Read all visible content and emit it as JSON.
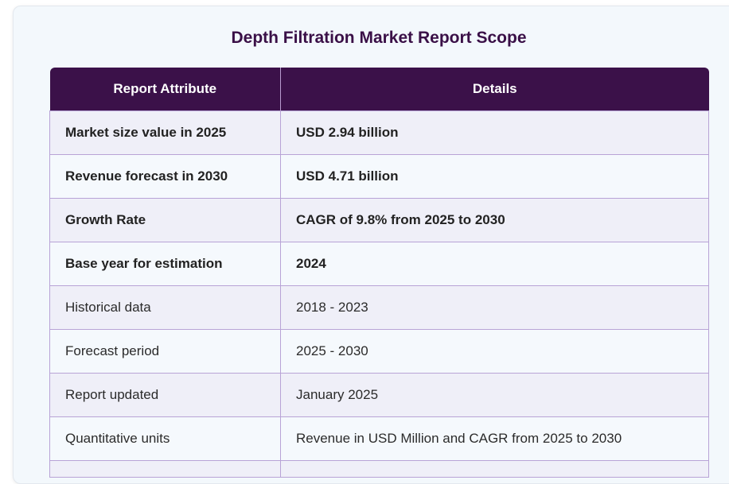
{
  "title": "Depth Filtration Market Report Scope",
  "table": {
    "headers": [
      "Report Attribute",
      "Details"
    ],
    "rows": [
      {
        "attribute": "Market size value in 2025",
        "details": "USD 2.94 billion"
      },
      {
        "attribute": "Revenue forecast in 2030",
        "details": "USD 4.71 billion"
      },
      {
        "attribute": "Growth Rate",
        "details": "CAGR of 9.8% from 2025 to 2030"
      },
      {
        "attribute": "Base year for estimation",
        "details": "2024"
      },
      {
        "attribute": "Historical data",
        "details": "2018 - 2023"
      },
      {
        "attribute": "Forecast period",
        "details": "2025 - 2030"
      },
      {
        "attribute": "Report updated",
        "details": "January 2025"
      },
      {
        "attribute": "Quantitative units",
        "details": "Revenue in USD Million and CAGR from 2025 to 2030"
      }
    ]
  },
  "colors": {
    "header_bg": "#3b1149",
    "title_color": "#3a1047",
    "row_border": "#b8a3d6",
    "row_odd_bg": "#efeff8",
    "row_even_bg": "#f5f9fd"
  }
}
